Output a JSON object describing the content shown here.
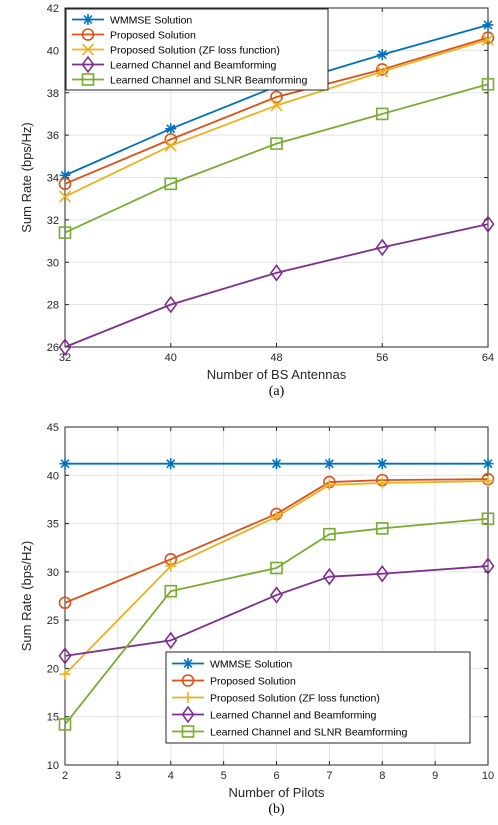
{
  "colors": {
    "wmmse": "#0072BD",
    "proposed": "#D95319",
    "zf": "#EDB120",
    "learned_bf": "#7E2F8E",
    "learned_slnr": "#77AC30"
  },
  "chart_data": [
    {
      "type": "line",
      "subtitle": "(a)",
      "xlabel": "Number of BS Antennas",
      "ylabel": "Sum Rate (bps/Hz)",
      "xlim": [
        32,
        64
      ],
      "ylim": [
        26,
        42
      ],
      "xticks": [
        32,
        40,
        48,
        56,
        64
      ],
      "yticks": [
        26,
        28,
        30,
        32,
        34,
        36,
        38,
        40,
        42
      ],
      "grid": true,
      "legend_position": "top-left",
      "series": [
        {
          "name": "WMMSE Solution",
          "marker": "asterisk",
          "color": "#0072BD",
          "x": [
            32,
            40,
            48,
            56,
            64
          ],
          "values": [
            34.1,
            36.3,
            38.3,
            39.8,
            41.2
          ]
        },
        {
          "name": "Proposed Solution",
          "marker": "circle",
          "color": "#D95319",
          "x": [
            32,
            40,
            48,
            56,
            64
          ],
          "values": [
            33.7,
            35.8,
            37.8,
            39.1,
            40.6
          ]
        },
        {
          "name": "Proposed Solution (ZF loss function)",
          "marker": "x",
          "color": "#EDB120",
          "x": [
            32,
            40,
            48,
            56,
            64
          ],
          "values": [
            33.1,
            35.5,
            37.4,
            39.0,
            40.5
          ]
        },
        {
          "name": "Learned Channel and Beamforming",
          "marker": "diamond",
          "color": "#7E2F8E",
          "x": [
            32,
            40,
            48,
            56,
            64
          ],
          "values": [
            26.0,
            28.0,
            29.5,
            30.7,
            31.8
          ]
        },
        {
          "name": "Learned Channel and SLNR Beamforming",
          "marker": "square",
          "color": "#77AC30",
          "x": [
            32,
            40,
            48,
            56,
            64
          ],
          "values": [
            31.4,
            33.7,
            35.6,
            37.0,
            38.4
          ]
        }
      ]
    },
    {
      "type": "line",
      "subtitle": "(b)",
      "xlabel": "Number of Pilots",
      "ylabel": "Sum Rate (bps/Hz)",
      "xlim": [
        2,
        10
      ],
      "ylim": [
        10,
        45
      ],
      "xticks": [
        2,
        3,
        4,
        5,
        6,
        7,
        8,
        9,
        10
      ],
      "yticks": [
        10,
        15,
        20,
        25,
        30,
        35,
        40,
        45
      ],
      "grid": true,
      "legend_position": "bottom-right",
      "series": [
        {
          "name": "WMMSE Solution",
          "marker": "asterisk",
          "color": "#0072BD",
          "x": [
            2,
            4,
            6,
            7,
            8,
            10
          ],
          "values": [
            41.2,
            41.2,
            41.2,
            41.2,
            41.2,
            41.2
          ]
        },
        {
          "name": "Proposed Solution",
          "marker": "circle",
          "color": "#D95319",
          "x": [
            2,
            4,
            6,
            7,
            8,
            10
          ],
          "values": [
            26.8,
            31.3,
            36.0,
            39.3,
            39.5,
            39.6
          ]
        },
        {
          "name": "Proposed Solution (ZF loss function)",
          "marker": "plus",
          "color": "#EDB120",
          "x": [
            2,
            4,
            6,
            7,
            8,
            10
          ],
          "values": [
            19.4,
            30.6,
            35.7,
            39.0,
            39.2,
            39.4
          ]
        },
        {
          "name": "Learned Channel and Beamforming",
          "marker": "diamond",
          "color": "#7E2F8E",
          "x": [
            2,
            4,
            6,
            7,
            8,
            10
          ],
          "values": [
            21.3,
            22.9,
            27.6,
            29.5,
            29.8,
            30.6
          ]
        },
        {
          "name": "Learned Channel and SLNR Beamforming",
          "marker": "square",
          "color": "#77AC30",
          "x": [
            2,
            4,
            6,
            7,
            8,
            10
          ],
          "values": [
            14.2,
            28.0,
            30.4,
            33.9,
            34.5,
            35.5
          ]
        }
      ]
    }
  ]
}
